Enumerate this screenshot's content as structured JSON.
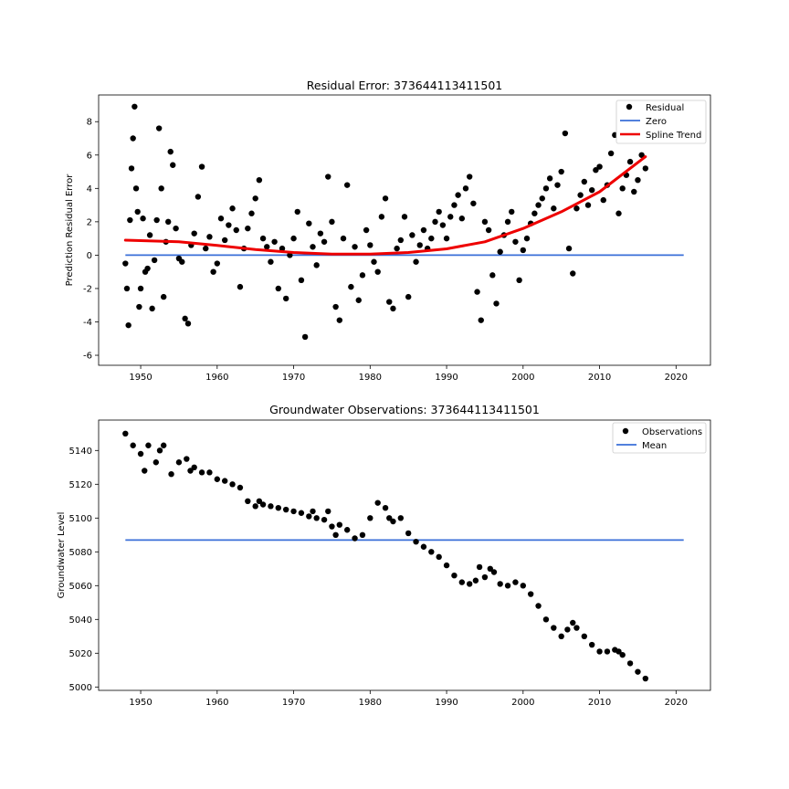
{
  "chart_data": [
    {
      "type": "scatter",
      "title": "Residual Error: 373644113411501",
      "xlabel": "",
      "ylabel": "Prediction Residual Error",
      "xlim": [
        1944.5,
        2024.5
      ],
      "ylim": [
        -6.6,
        9.6
      ],
      "xticks": [
        1950,
        1960,
        1970,
        1980,
        1990,
        2000,
        2010,
        2020
      ],
      "yticks": [
        -6,
        -4,
        -2,
        0,
        2,
        4,
        6,
        8
      ],
      "grid": false,
      "legend": {
        "location": "upper right",
        "entries": [
          "Residual",
          "Zero",
          "Spline Trend"
        ]
      },
      "colors": {
        "points": "#000000",
        "zero": "#3a6fd8",
        "trend": "#ee0000"
      },
      "zero_line": {
        "x": [
          1948,
          2021
        ],
        "y": [
          0,
          0
        ]
      },
      "trend": {
        "x": [
          1948,
          1955,
          1960,
          1965,
          1970,
          1975,
          1980,
          1985,
          1990,
          1995,
          2000,
          2005,
          2010,
          2016
        ],
        "y": [
          0.9,
          0.8,
          0.58,
          0.34,
          0.16,
          0.06,
          0.06,
          0.16,
          0.38,
          0.8,
          1.6,
          2.6,
          3.8,
          5.9
        ]
      },
      "series": [
        {
          "name": "Residual",
          "x": [
            1948.0,
            1948.2,
            1948.4,
            1948.6,
            1948.8,
            1949.0,
            1949.2,
            1949.4,
            1949.6,
            1949.8,
            1950.0,
            1950.3,
            1950.6,
            1950.9,
            1951.2,
            1951.5,
            1951.8,
            1952.1,
            1952.4,
            1952.7,
            1953.0,
            1953.3,
            1953.6,
            1953.9,
            1954.2,
            1954.6,
            1955.0,
            1955.4,
            1955.8,
            1956.2,
            1956.6,
            1957.0,
            1957.5,
            1958.0,
            1958.5,
            1959.0,
            1959.5,
            1960.0,
            1960.5,
            1961.0,
            1961.5,
            1962.0,
            1962.5,
            1963.0,
            1963.5,
            1964.0,
            1964.5,
            1965.0,
            1965.5,
            1966.0,
            1966.5,
            1967.0,
            1967.5,
            1968.0,
            1968.5,
            1969.0,
            1969.5,
            1970.0,
            1970.5,
            1971.0,
            1971.5,
            1972.0,
            1972.5,
            1973.0,
            1973.5,
            1974.0,
            1974.5,
            1975.0,
            1975.5,
            1976.0,
            1976.5,
            1977.0,
            1977.5,
            1978.0,
            1978.5,
            1979.0,
            1979.5,
            1980.0,
            1980.5,
            1981.0,
            1981.5,
            1982.0,
            1982.5,
            1983.0,
            1983.5,
            1984.0,
            1984.5,
            1985.0,
            1985.5,
            1986.0,
            1986.5,
            1987.0,
            1987.5,
            1988.0,
            1988.5,
            1989.0,
            1989.5,
            1990.0,
            1990.5,
            1991.0,
            1991.5,
            1992.0,
            1992.5,
            1993.0,
            1993.5,
            1994.0,
            1994.5,
            1995.0,
            1995.5,
            1996.0,
            1996.5,
            1997.0,
            1997.5,
            1998.0,
            1998.5,
            1999.0,
            1999.5,
            2000.0,
            2000.5,
            2001.0,
            2001.5,
            2002.0,
            2002.5,
            2003.0,
            2003.5,
            2004.0,
            2004.5,
            2005.0,
            2005.5,
            2006.0,
            2006.5,
            2007.0,
            2007.5,
            2008.0,
            2008.5,
            2009.0,
            2009.5,
            2010.0,
            2010.5,
            2011.0,
            2011.5,
            2012.0,
            2012.5,
            2013.0,
            2013.5,
            2014.0,
            2014.5,
            2015.0,
            2015.5,
            2016.0
          ],
          "y": [
            -0.5,
            -2.0,
            -4.2,
            2.1,
            5.2,
            7.0,
            8.9,
            4.0,
            2.6,
            -3.1,
            -2.0,
            2.2,
            -1.0,
            -0.8,
            1.2,
            -3.2,
            -0.3,
            2.1,
            7.6,
            4.0,
            -2.5,
            0.8,
            2.0,
            6.2,
            5.4,
            1.6,
            -0.2,
            -0.4,
            -3.8,
            -4.1,
            0.6,
            1.3,
            3.5,
            5.3,
            0.4,
            1.1,
            -1.0,
            -0.5,
            2.2,
            0.9,
            1.8,
            2.8,
            1.5,
            -1.9,
            0.4,
            1.6,
            2.5,
            3.4,
            4.5,
            1.0,
            0.5,
            -0.4,
            0.8,
            -2.0,
            0.4,
            -2.6,
            0.0,
            1.0,
            2.6,
            -1.5,
            -4.9,
            1.9,
            0.5,
            -0.6,
            1.3,
            0.8,
            4.7,
            2.0,
            -3.1,
            -3.9,
            1.0,
            4.2,
            -1.9,
            0.5,
            -2.7,
            -1.2,
            1.5,
            0.6,
            -0.4,
            -1.0,
            2.3,
            3.4,
            -2.8,
            -3.2,
            0.4,
            0.9,
            2.3,
            -2.5,
            1.2,
            -0.4,
            0.6,
            1.5,
            0.4,
            1.0,
            2.0,
            2.6,
            1.8,
            1.0,
            2.3,
            3.0,
            3.6,
            2.2,
            4.0,
            4.7,
            3.1,
            -2.2,
            -3.9,
            2.0,
            1.5,
            -1.2,
            -2.9,
            0.2,
            1.2,
            2.0,
            2.6,
            0.8,
            -1.5,
            0.3,
            1.0,
            1.9,
            2.5,
            3.0,
            3.4,
            4.0,
            4.6,
            2.8,
            4.2,
            5.0,
            7.3,
            0.4,
            -1.1,
            2.8,
            3.6,
            4.4,
            3.0,
            3.9,
            5.1,
            5.3,
            3.3,
            4.2,
            6.1,
            7.2,
            2.5,
            4.0,
            4.8,
            5.6,
            3.8,
            4.5,
            6.0,
            5.2
          ]
        }
      ]
    },
    {
      "type": "scatter",
      "title": "Groundwater Observations: 373644113411501",
      "xlabel": "",
      "ylabel": "Groundwater Level",
      "xlim": [
        1944.5,
        2024.5
      ],
      "ylim": [
        4998,
        5158
      ],
      "xticks": [
        1950,
        1960,
        1970,
        1980,
        1990,
        2000,
        2010,
        2020
      ],
      "yticks": [
        5000,
        5020,
        5040,
        5060,
        5080,
        5100,
        5120,
        5140
      ],
      "grid": false,
      "legend": {
        "location": "upper right",
        "entries": [
          "Observations",
          "Mean"
        ]
      },
      "colors": {
        "points": "#000000",
        "mean": "#3a6fd8"
      },
      "mean_line": {
        "x": [
          1948,
          2021
        ],
        "y": [
          5087,
          5087
        ]
      },
      "series": [
        {
          "name": "Observations",
          "x": [
            1948.0,
            1949.0,
            1950.0,
            1950.5,
            1951.0,
            1952.0,
            1952.5,
            1953.0,
            1954.0,
            1955.0,
            1956.0,
            1956.5,
            1957.0,
            1958.0,
            1959.0,
            1960.0,
            1961.0,
            1962.0,
            1963.0,
            1964.0,
            1965.0,
            1965.5,
            1966.0,
            1967.0,
            1968.0,
            1969.0,
            1970.0,
            1971.0,
            1972.0,
            1972.5,
            1973.0,
            1974.0,
            1974.5,
            1975.0,
            1975.5,
            1976.0,
            1977.0,
            1978.0,
            1979.0,
            1980.0,
            1981.0,
            1982.0,
            1982.5,
            1983.0,
            1984.0,
            1985.0,
            1986.0,
            1987.0,
            1988.0,
            1989.0,
            1990.0,
            1991.0,
            1992.0,
            1993.0,
            1993.8,
            1994.3,
            1995.0,
            1995.7,
            1996.2,
            1997.0,
            1998.0,
            1999.0,
            2000.0,
            2001.0,
            2002.0,
            2003.0,
            2004.0,
            2005.0,
            2005.8,
            2006.5,
            2007.0,
            2008.0,
            2009.0,
            2010.0,
            2011.0,
            2012.0,
            2012.5,
            2013.0,
            2014.0,
            2015.0,
            2016.0
          ],
          "y": [
            5150,
            5143,
            5138,
            5128,
            5143,
            5133,
            5140,
            5143,
            5126,
            5133,
            5135,
            5128,
            5130,
            5127,
            5127,
            5123,
            5122,
            5120,
            5118,
            5110,
            5107,
            5110,
            5108,
            5107,
            5106,
            5105,
            5104,
            5103,
            5101,
            5104,
            5100,
            5099,
            5104,
            5095,
            5090,
            5096,
            5093,
            5088,
            5090,
            5100,
            5109,
            5106,
            5100,
            5098,
            5100,
            5091,
            5086,
            5083,
            5080,
            5077,
            5072,
            5066,
            5062,
            5061,
            5063,
            5071,
            5065,
            5070,
            5068,
            5061,
            5060,
            5062,
            5060,
            5055,
            5048,
            5040,
            5035,
            5030,
            5034,
            5038,
            5035,
            5030,
            5025,
            5021,
            5021,
            5022,
            5021,
            5019,
            5014,
            5009,
            5005
          ]
        }
      ]
    }
  ]
}
